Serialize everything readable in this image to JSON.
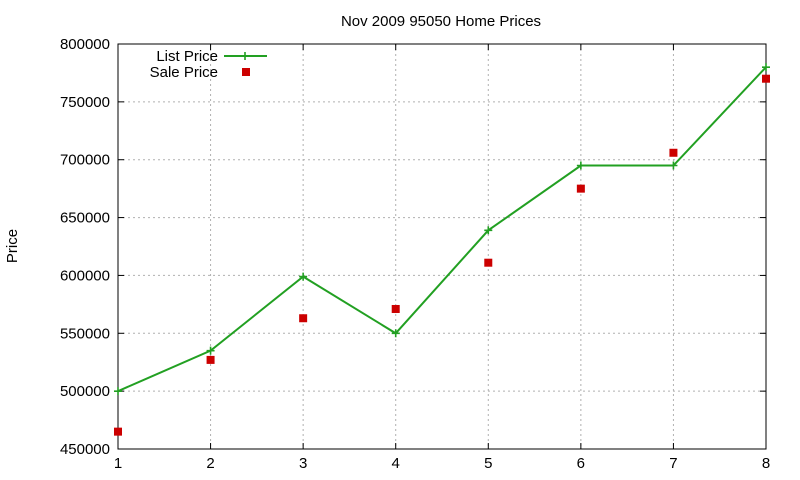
{
  "chart_data": {
    "type": "line",
    "title": "Nov 2009 95050 Home Prices",
    "xlabel": "",
    "ylabel": "Price",
    "xlim": [
      1,
      8
    ],
    "ylim": [
      450000,
      800000
    ],
    "x_ticks": [
      "1",
      "2",
      "3",
      "4",
      "5",
      "6",
      "7",
      "8"
    ],
    "y_ticks": [
      "450000",
      "500000",
      "550000",
      "600000",
      "650000",
      "700000",
      "750000",
      "800000"
    ],
    "grid": true,
    "legend_position": "top-left",
    "series": [
      {
        "name": "List Price",
        "style": "line-with-plus-markers",
        "color": "#22a022",
        "x": [
          1,
          2,
          3,
          4,
          5,
          6,
          7,
          8
        ],
        "y": [
          500000,
          535000,
          599000,
          550000,
          639000,
          695000,
          695000,
          780000
        ]
      },
      {
        "name": "Sale Price",
        "style": "square-markers",
        "color": "#cc0000",
        "x": [
          1,
          2,
          3,
          4,
          5,
          6,
          7,
          8
        ],
        "y": [
          465000,
          527000,
          563000,
          571000,
          611000,
          675000,
          706000,
          770000
        ]
      }
    ]
  }
}
